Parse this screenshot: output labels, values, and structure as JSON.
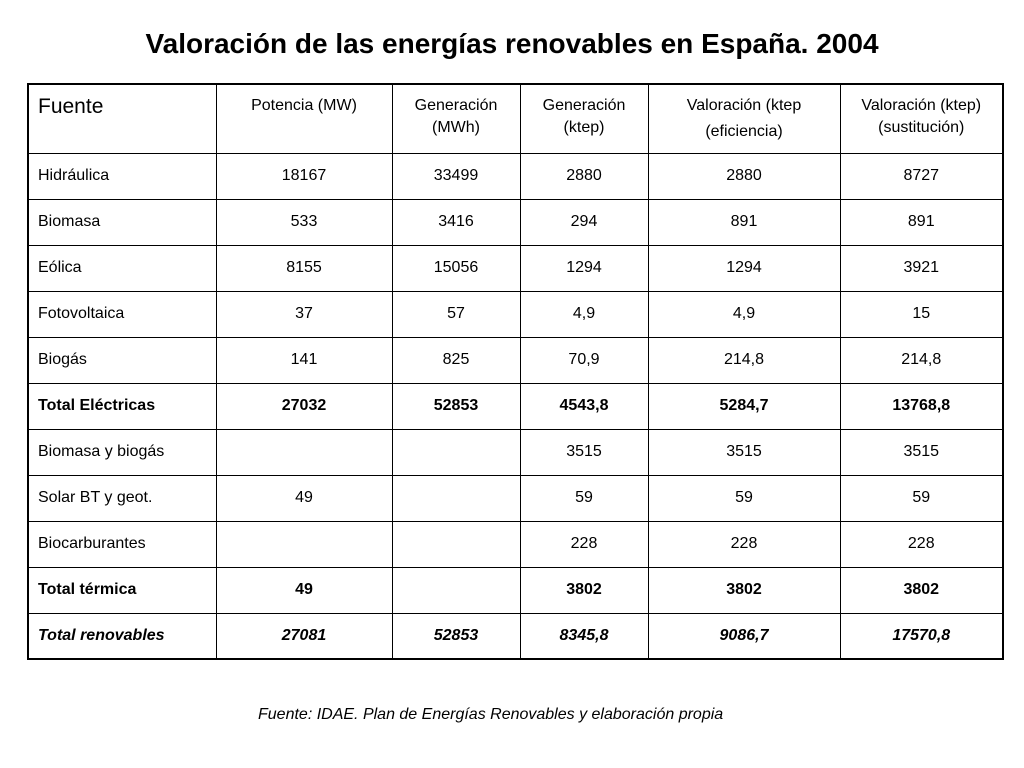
{
  "title": "Valoración de las energías renovables en España. 2004",
  "table": {
    "headers": {
      "fuente": "Fuente",
      "potencia": "Potencia (MW)",
      "gen_mwh_1": "Generación",
      "gen_mwh_2": "(MWh)",
      "gen_ktep_1": "Generación",
      "gen_ktep_2": "(ktep)",
      "val_ef_1": "Valoración (ktep",
      "val_ef_2": "(eficiencia)",
      "val_sus_1": "Valoración (ktep)",
      "val_sus_2": "(sustitución)"
    },
    "rows": [
      {
        "fuente": "Hidráulica",
        "potencia": "18167",
        "gen_mwh": "33499",
        "gen_ktep": "2880",
        "val_ef": "2880",
        "val_sus": "8727"
      },
      {
        "fuente": "Biomasa",
        "potencia": "533",
        "gen_mwh": "3416",
        "gen_ktep": "294",
        "val_ef": "891",
        "val_sus": "891"
      },
      {
        "fuente": "Eólica",
        "potencia": "8155",
        "gen_mwh": "15056",
        "gen_ktep": "1294",
        "val_ef": "1294",
        "val_sus": "3921"
      },
      {
        "fuente": "Fotovoltaica",
        "potencia": "37",
        "gen_mwh": "57",
        "gen_ktep": "4,9",
        "val_ef": "4,9",
        "val_sus": "15"
      },
      {
        "fuente": "Biogás",
        "potencia": "141",
        "gen_mwh": "825",
        "gen_ktep": "70,9",
        "val_ef": "214,8",
        "val_sus": "214,8"
      },
      {
        "fuente": "Total Eléctricas",
        "potencia": "27032",
        "gen_mwh": "52853",
        "gen_ktep": "4543,8",
        "val_ef": "5284,7",
        "val_sus": "13768,8"
      },
      {
        "fuente": "Biomasa y biogás",
        "potencia": "",
        "gen_mwh": "",
        "gen_ktep": "3515",
        "val_ef": "3515",
        "val_sus": "3515"
      },
      {
        "fuente": "Solar BT y geot.",
        "potencia": "49",
        "gen_mwh": "",
        "gen_ktep": "59",
        "val_ef": "59",
        "val_sus": "59"
      },
      {
        "fuente": "Biocarburantes",
        "potencia": "",
        "gen_mwh": "",
        "gen_ktep": "228",
        "val_ef": "228",
        "val_sus": "228"
      },
      {
        "fuente": "Total térmica",
        "potencia": "49",
        "gen_mwh": "",
        "gen_ktep": "3802",
        "val_ef": "3802",
        "val_sus": "3802"
      },
      {
        "fuente": "Total renovables",
        "potencia": "27081",
        "gen_mwh": "52853",
        "gen_ktep": "8345,8",
        "val_ef": "9086,7",
        "val_sus": "17570,8"
      }
    ]
  },
  "source": "Fuente: IDAE. Plan de Energías Renovables y elaboración propia"
}
